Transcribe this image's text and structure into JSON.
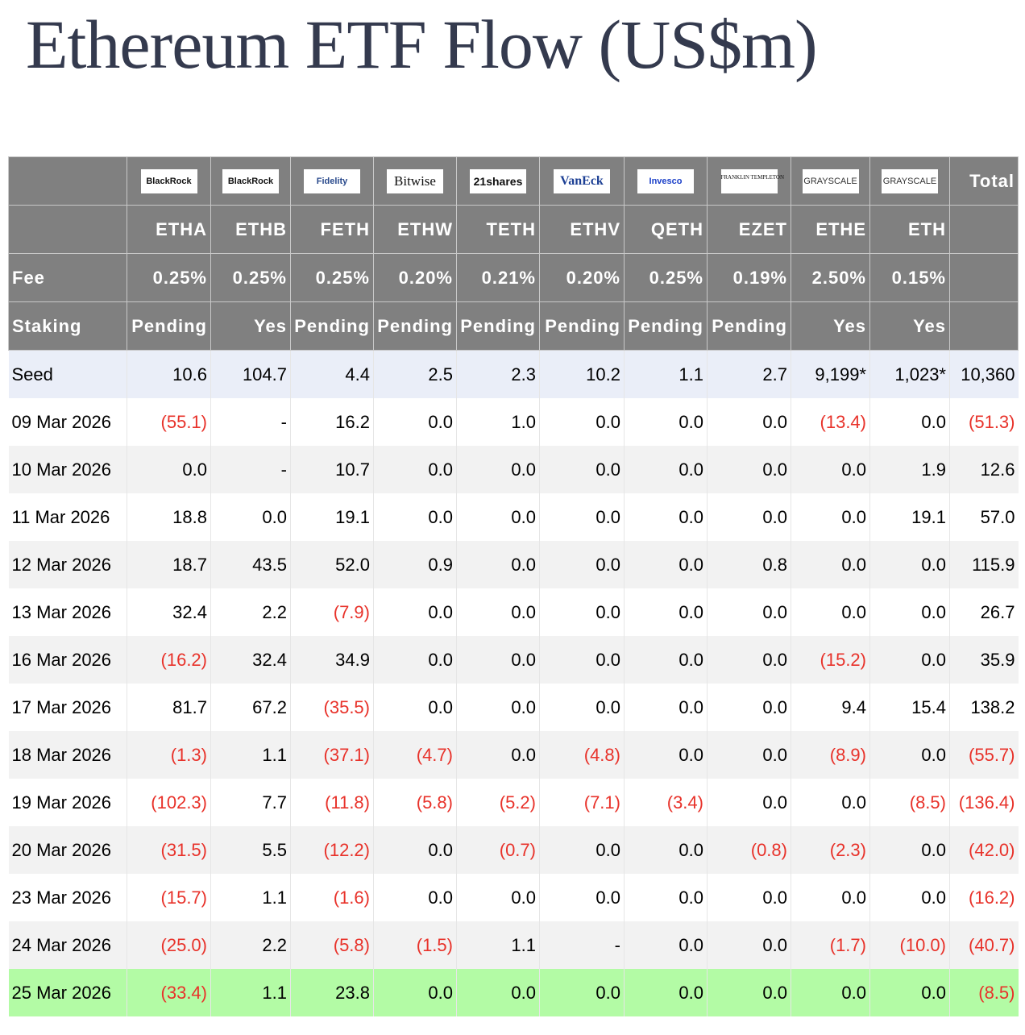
{
  "title": "Ethereum ETF Flow (US$m)",
  "colors": {
    "header_bg": "#808080",
    "negative": "#e8322a",
    "latest_row": "#b3fba5",
    "seed_row": "#eaeef8",
    "title": "#343a4e"
  },
  "total_label": "Total",
  "logos": [
    "BlackRock",
    "BlackRock",
    "Fidelity",
    "Bitwise",
    "21shares",
    "VanEck",
    "Invesco",
    "FRANKLIN TEMPLETON",
    "GRAYSCALE",
    "GRAYSCALE"
  ],
  "tickers": [
    "ETHA",
    "ETHB",
    "FETH",
    "ETHW",
    "TETH",
    "ETHV",
    "QETH",
    "EZET",
    "ETHE",
    "ETH"
  ],
  "fee_label": "Fee",
  "fees": [
    "0.25%",
    "0.25%",
    "0.25%",
    "0.20%",
    "0.21%",
    "0.20%",
    "0.25%",
    "0.19%",
    "2.50%",
    "0.15%"
  ],
  "staking_label": "Staking",
  "staking": [
    "Pending",
    "Yes",
    "Pending",
    "Pending",
    "Pending",
    "Pending",
    "Pending",
    "Pending",
    "Yes",
    "Yes"
  ],
  "rows": [
    {
      "label": "Seed",
      "values": [
        "10.6",
        "104.7",
        "4.4",
        "2.5",
        "2.3",
        "10.2",
        "1.1",
        "2.7",
        "9,199*",
        "1,023*",
        "10,360"
      ]
    },
    {
      "label": "09 Mar 2026",
      "values": [
        "(55.1)",
        "-",
        "16.2",
        "0.0",
        "1.0",
        "0.0",
        "0.0",
        "0.0",
        "(13.4)",
        "0.0",
        "(51.3)"
      ]
    },
    {
      "label": "10 Mar 2026",
      "values": [
        "0.0",
        "-",
        "10.7",
        "0.0",
        "0.0",
        "0.0",
        "0.0",
        "0.0",
        "0.0",
        "1.9",
        "12.6"
      ]
    },
    {
      "label": "11 Mar 2026",
      "values": [
        "18.8",
        "0.0",
        "19.1",
        "0.0",
        "0.0",
        "0.0",
        "0.0",
        "0.0",
        "0.0",
        "19.1",
        "57.0"
      ]
    },
    {
      "label": "12 Mar 2026",
      "values": [
        "18.7",
        "43.5",
        "52.0",
        "0.9",
        "0.0",
        "0.0",
        "0.0",
        "0.8",
        "0.0",
        "0.0",
        "115.9"
      ]
    },
    {
      "label": "13 Mar 2026",
      "values": [
        "32.4",
        "2.2",
        "(7.9)",
        "0.0",
        "0.0",
        "0.0",
        "0.0",
        "0.0",
        "0.0",
        "0.0",
        "26.7"
      ]
    },
    {
      "label": "16 Mar 2026",
      "values": [
        "(16.2)",
        "32.4",
        "34.9",
        "0.0",
        "0.0",
        "0.0",
        "0.0",
        "0.0",
        "(15.2)",
        "0.0",
        "35.9"
      ]
    },
    {
      "label": "17 Mar 2026",
      "values": [
        "81.7",
        "67.2",
        "(35.5)",
        "0.0",
        "0.0",
        "0.0",
        "0.0",
        "0.0",
        "9.4",
        "15.4",
        "138.2"
      ]
    },
    {
      "label": "18 Mar 2026",
      "values": [
        "(1.3)",
        "1.1",
        "(37.1)",
        "(4.7)",
        "0.0",
        "(4.8)",
        "0.0",
        "0.0",
        "(8.9)",
        "0.0",
        "(55.7)"
      ]
    },
    {
      "label": "19 Mar 2026",
      "values": [
        "(102.3)",
        "7.7",
        "(11.8)",
        "(5.8)",
        "(5.2)",
        "(7.1)",
        "(3.4)",
        "0.0",
        "0.0",
        "(8.5)",
        "(136.4)"
      ]
    },
    {
      "label": "20 Mar 2026",
      "values": [
        "(31.5)",
        "5.5",
        "(12.2)",
        "0.0",
        "(0.7)",
        "0.0",
        "0.0",
        "(0.8)",
        "(2.3)",
        "0.0",
        "(42.0)"
      ]
    },
    {
      "label": "23 Mar 2026",
      "values": [
        "(15.7)",
        "1.1",
        "(1.6)",
        "0.0",
        "0.0",
        "0.0",
        "0.0",
        "0.0",
        "0.0",
        "0.0",
        "(16.2)"
      ]
    },
    {
      "label": "24 Mar 2026",
      "values": [
        "(25.0)",
        "2.2",
        "(5.8)",
        "(1.5)",
        "1.1",
        "-",
        "0.0",
        "0.0",
        "(1.7)",
        "(10.0)",
        "(40.7)"
      ]
    },
    {
      "label": "25 Mar 2026",
      "values": [
        "(33.4)",
        "1.1",
        "23.8",
        "0.0",
        "0.0",
        "0.0",
        "0.0",
        "0.0",
        "0.0",
        "0.0",
        "(8.5)"
      ]
    }
  ]
}
